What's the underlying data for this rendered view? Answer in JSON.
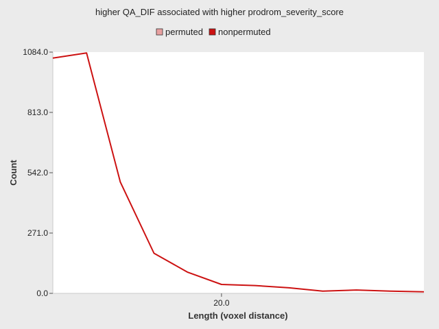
{
  "chart_data": {
    "type": "line",
    "title": "higher QA_DIF associated with higher prodrom_severity_score",
    "xlabel": "Length (voxel distance)",
    "ylabel": "Count",
    "xlim": [
      0,
      44
    ],
    "ylim": [
      0,
      1084.0
    ],
    "x_ticks": [
      20.0
    ],
    "x_tick_labels": [
      "20.0"
    ],
    "y_ticks": [
      0.0,
      271.0,
      542.0,
      813.0,
      1084.0
    ],
    "y_tick_labels": [
      "0.0",
      "271.0",
      "542.0",
      "813.0",
      "1084.0"
    ],
    "grid": false,
    "legend_position": "top",
    "series": [
      {
        "name": "permuted",
        "color": "#e8a0a0",
        "x": [],
        "y": []
      },
      {
        "name": "nonpermuted",
        "color": "#cc1111",
        "x": [
          0,
          4,
          8,
          12,
          16,
          20,
          24,
          28,
          32,
          36,
          40,
          44
        ],
        "y": [
          1057,
          1080,
          500,
          180,
          95,
          40,
          35,
          25,
          10,
          15,
          10,
          7
        ]
      }
    ]
  }
}
